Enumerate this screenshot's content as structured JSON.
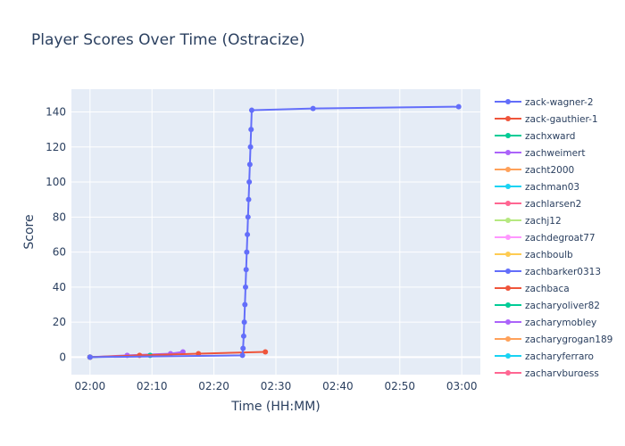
{
  "chart_data": {
    "type": "line",
    "title": "Player Scores Over Time (Ostracize)",
    "xlabel": "Time (HH:MM)",
    "ylabel": "Score",
    "x_range": [
      "01:57",
      "03:03"
    ],
    "ylim": [
      -10,
      153
    ],
    "x_ticks": [
      "02:00",
      "02:10",
      "02:20",
      "02:30",
      "02:40",
      "02:50",
      "03:00"
    ],
    "y_ticks": [
      0,
      20,
      40,
      60,
      80,
      100,
      120,
      140
    ],
    "grid": true,
    "legend_position": "right",
    "series": [
      {
        "name": "zack-wagner-2",
        "color": "#636efa",
        "points": [
          [
            "02:00",
            0
          ],
          [
            "02:24.6",
            1
          ],
          [
            "02:24.7",
            5
          ],
          [
            "02:24.8",
            12
          ],
          [
            "02:24.9",
            20
          ],
          [
            "02:25.0",
            30
          ],
          [
            "02:25.1",
            40
          ],
          [
            "02:25.2",
            50
          ],
          [
            "02:25.3",
            60
          ],
          [
            "02:25.4",
            70
          ],
          [
            "02:25.5",
            80
          ],
          [
            "02:25.6",
            90
          ],
          [
            "02:25.7",
            100
          ],
          [
            "02:25.8",
            110
          ],
          [
            "02:25.9",
            120
          ],
          [
            "02:26.0",
            130
          ],
          [
            "02:26.1",
            141
          ],
          [
            "02:36",
            142
          ],
          [
            "02:59.5",
            143
          ]
        ]
      },
      {
        "name": "zack-gauthier-1",
        "color": "#ef553b",
        "points": [
          [
            "02:00",
            0
          ],
          [
            "02:08",
            1
          ],
          [
            "02:17.5",
            2
          ],
          [
            "02:28.3",
            3
          ]
        ]
      },
      {
        "name": "zachxward",
        "color": "#00cc96",
        "points": [
          [
            "02:00",
            0
          ],
          [
            "02:09.7",
            1
          ]
        ]
      },
      {
        "name": "zachweimert",
        "color": "#ab63fa",
        "points": [
          [
            "02:00",
            0
          ],
          [
            "02:06",
            1
          ],
          [
            "02:13",
            2
          ],
          [
            "02:15",
            3
          ]
        ]
      },
      {
        "name": "zacht2000",
        "color": "#ffa15a",
        "points": [
          [
            "02:00",
            0
          ]
        ]
      },
      {
        "name": "zachman03",
        "color": "#19d3f3",
        "points": [
          [
            "02:00",
            0
          ]
        ]
      },
      {
        "name": "zachlarsen2",
        "color": "#ff6692",
        "points": [
          [
            "02:00",
            0
          ]
        ]
      },
      {
        "name": "zachj12",
        "color": "#b6e880",
        "points": [
          [
            "02:00",
            0
          ]
        ]
      },
      {
        "name": "zachdegroat77",
        "color": "#ff97ff",
        "points": [
          [
            "02:00",
            0
          ]
        ]
      },
      {
        "name": "zachboulb",
        "color": "#fecb52",
        "points": [
          [
            "02:00",
            0
          ]
        ]
      },
      {
        "name": "zachbarker0313",
        "color": "#636efa",
        "points": [
          [
            "02:00",
            0
          ]
        ]
      },
      {
        "name": "zachbaca",
        "color": "#ef553b",
        "points": [
          [
            "02:00",
            0
          ]
        ]
      },
      {
        "name": "zacharyoliver82",
        "color": "#00cc96",
        "points": [
          [
            "02:00",
            0
          ]
        ]
      },
      {
        "name": "zacharymobley",
        "color": "#ab63fa",
        "points": [
          [
            "02:00",
            0
          ]
        ]
      },
      {
        "name": "zacharygrogan189",
        "color": "#ffa15a",
        "points": [
          [
            "02:00",
            0
          ]
        ]
      },
      {
        "name": "zacharyferraro",
        "color": "#19d3f3",
        "points": [
          [
            "02:00",
            0
          ]
        ]
      },
      {
        "name": "zacharyburgess",
        "color": "#ff6692",
        "points": [
          [
            "02:00",
            0
          ]
        ]
      }
    ]
  }
}
